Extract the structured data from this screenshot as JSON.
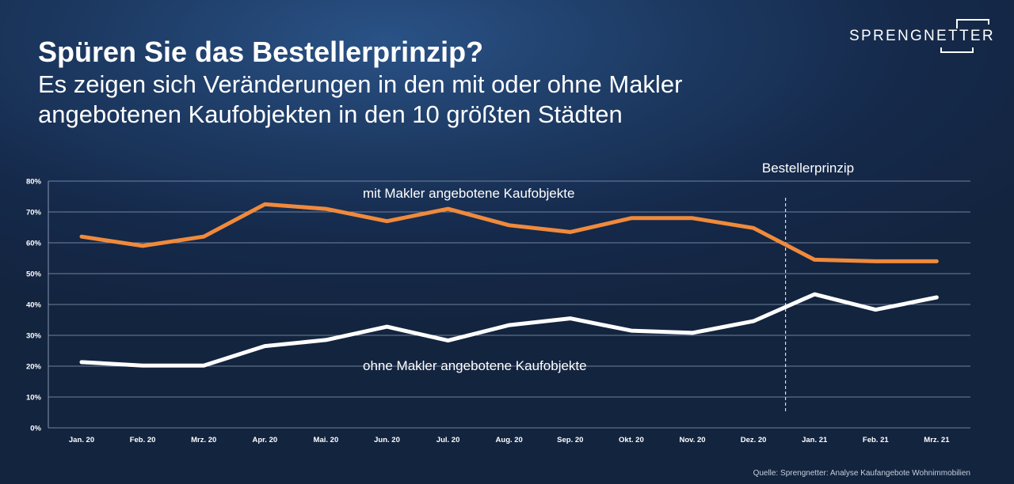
{
  "header": {
    "title": "Spüren Sie das Bestellerprinzip?",
    "subtitle_line1": "Es zeigen sich Veränderungen in den mit oder ohne Makler",
    "subtitle_line2": "angebotenen Kaufobjekten in den 10 größten Städten"
  },
  "logo": {
    "text": "SPRENGNETTER"
  },
  "source": "Quelle: Sprengnetter: Analyse Kaufangebote Wohnimmobilien",
  "colors": {
    "orange_series": "#f08a3c",
    "white_series": "#ffffff",
    "grid": "#8798b3",
    "axis_text": "#ffffff"
  },
  "chart_data": {
    "type": "line",
    "categories": [
      "Jan. 20",
      "Feb. 20",
      "Mrz. 20",
      "Apr. 20",
      "Mai. 20",
      "Jun. 20",
      "Jul. 20",
      "Aug. 20",
      "Sep. 20",
      "Okt. 20",
      "Nov. 20",
      "Dez. 20",
      "Jan. 21",
      "Feb. 21",
      "Mrz. 21"
    ],
    "ylim": [
      0,
      80
    ],
    "yticks": [
      0,
      10,
      20,
      30,
      40,
      50,
      60,
      70,
      80
    ],
    "ytick_labels": [
      "0%",
      "10%",
      "20%",
      "30%",
      "40%",
      "50%",
      "60%",
      "70%",
      "80%"
    ],
    "grid": true,
    "series": [
      {
        "name": "mit Makler angebotene Kaufobjekte",
        "color": "#f08a3c",
        "values": [
          62,
          59,
          62,
          72.5,
          71,
          67,
          71,
          65.7,
          63.5,
          68,
          68,
          64.8,
          54.5,
          54,
          54
        ]
      },
      {
        "name": "ohne Makler angebotene Kaufobjekte",
        "color": "#ffffff",
        "values": [
          21.3,
          20.2,
          20.2,
          26.5,
          28.5,
          32.8,
          28.3,
          33.3,
          35.5,
          31.5,
          30.8,
          34.6,
          43.3,
          38.3,
          42.3
        ]
      }
    ],
    "annotation": {
      "label": "Bestellerprinzip",
      "x_between": [
        "Dez. 20",
        "Jan. 21"
      ]
    }
  }
}
